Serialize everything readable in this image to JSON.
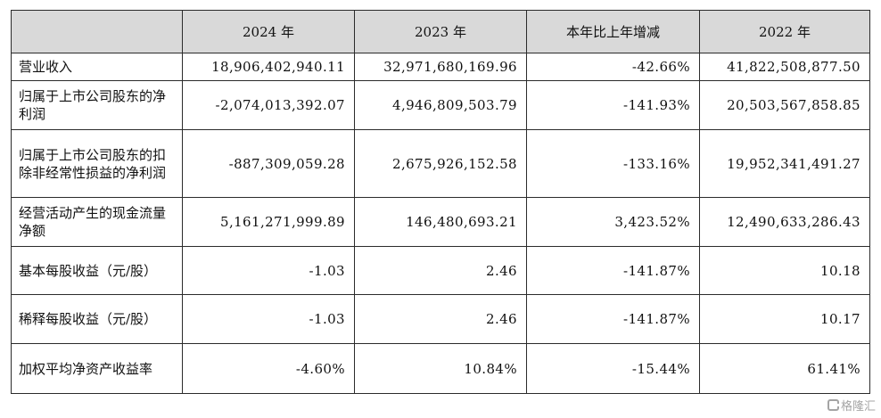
{
  "header": [
    "",
    "2024 年",
    "2023 年",
    "本年比上年增减",
    "2022 年"
  ],
  "rows": [
    {
      "label": "营业收入",
      "values": [
        "18,906,402,940.11",
        "32,971,680,169.96",
        "-42.66%",
        "41,822,508,877.50"
      ]
    },
    {
      "label": "归属于上市公司股东的净利润",
      "values": [
        "-2,074,013,392.07",
        "4,946,809,503.79",
        "-141.93%",
        "20,503,567,858.85"
      ]
    },
    {
      "label": "归属于上市公司股东的扣除非经常性损益的净利润",
      "values": [
        "-887,309,059.28",
        "2,675,926,152.58",
        "-133.16%",
        "19,952,341,491.27"
      ]
    },
    {
      "label": "经营活动产生的现金流量净额",
      "values": [
        "5,161,271,999.89",
        "146,480,693.21",
        "3,423.52%",
        "12,490,633,286.43"
      ]
    },
    {
      "label": "基本每股收益（元/股）",
      "values": [
        "-1.03",
        "2.46",
        "-141.87%",
        "10.18"
      ]
    },
    {
      "label": "稀释每股收益（元/股）",
      "values": [
        "-1.03",
        "2.46",
        "-141.87%",
        "10.17"
      ]
    },
    {
      "label": "加权平均净资产收益率",
      "values": [
        "-4.60%",
        "10.84%",
        "-15.44%",
        "61.41%"
      ]
    }
  ],
  "watermark": "格隆汇"
}
